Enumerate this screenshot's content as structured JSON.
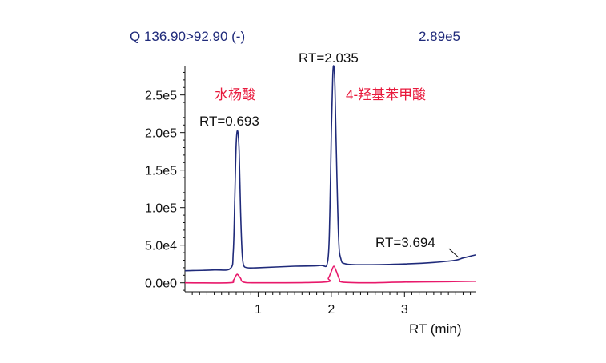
{
  "header": {
    "transition": "Q 136.90>92.90 (-)",
    "max_intensity": "2.89e5"
  },
  "colors": {
    "trace_blue": "#1f2a7a",
    "trace_pink": "#e8196b",
    "label_red": "#e8193c"
  },
  "chart_data": {
    "type": "line",
    "xlabel": "RT (min)",
    "ylabel": "",
    "xlim": [
      0,
      3.97
    ],
    "ylim": [
      -12000,
      289000
    ],
    "x_ticks": [
      1,
      2,
      3
    ],
    "x_tick_labels": [
      "1",
      "2",
      "3"
    ],
    "y_ticks": [
      0,
      50000,
      100000,
      150000,
      200000,
      250000
    ],
    "y_tick_labels": [
      "0.0e0",
      "5.0e4",
      "1.0e5",
      "1.5e5",
      "2.0e5",
      "2.5e5"
    ],
    "grid": false,
    "series": [
      {
        "color": "#1f2a7a",
        "x": [
          0.0,
          0.4,
          0.62,
          0.66,
          0.68,
          0.7,
          0.72,
          0.74,
          0.76,
          0.78,
          0.8,
          0.85,
          1.0,
          1.5,
          1.85,
          1.95,
          1.98,
          2.0,
          2.02,
          2.035,
          2.05,
          2.07,
          2.1,
          2.13,
          2.2,
          2.5,
          3.0,
          3.4,
          3.694,
          3.8,
          3.97
        ],
        "y": [
          16000,
          17000,
          19000,
          40000,
          110000,
          185000,
          202000,
          175000,
          95000,
          42000,
          24000,
          20000,
          20000,
          22000,
          23000,
          28000,
          90000,
          200000,
          275000,
          288000,
          262000,
          170000,
          60000,
          32000,
          25000,
          24000,
          25000,
          27000,
          30000,
          33000,
          37000
        ]
      },
      {
        "color": "#e8196b",
        "x": [
          0.0,
          0.6,
          0.66,
          0.7,
          0.72,
          0.76,
          0.8,
          1.0,
          1.9,
          1.96,
          2.0,
          2.035,
          2.07,
          2.11,
          2.15,
          2.5,
          3.0,
          3.6,
          3.97
        ],
        "y": [
          0,
          0,
          3000,
          10000,
          11000,
          6000,
          1000,
          0,
          1000,
          6000,
          15000,
          22000,
          15000,
          5000,
          1000,
          0,
          1000,
          1500,
          2000
        ]
      }
    ],
    "annotations": [
      {
        "text": "RT=0.693",
        "x": 0.693
      },
      {
        "text": "RT=2.035",
        "x": 2.035
      },
      {
        "text": "RT=3.694",
        "x": 3.694
      },
      {
        "text": "水杨酸",
        "x": 0.693
      },
      {
        "text": "4-羟基苯甲酸",
        "x": 2.035
      }
    ]
  }
}
